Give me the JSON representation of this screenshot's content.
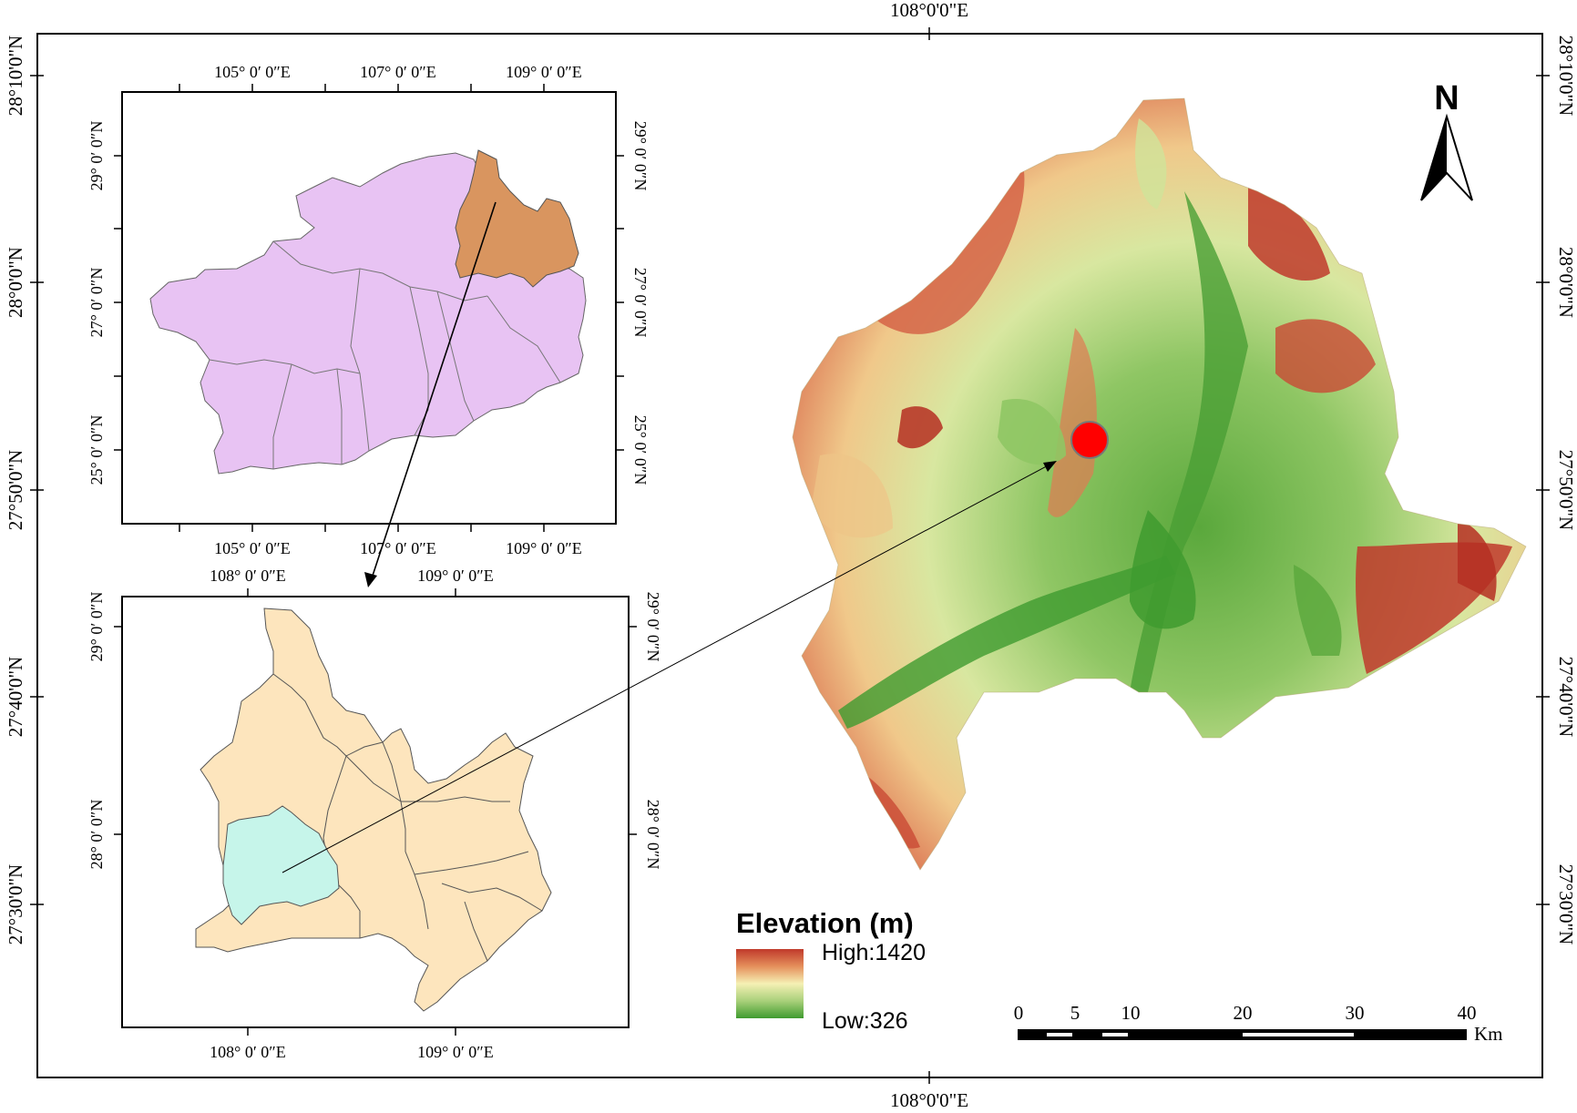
{
  "main_map": {
    "top_longitude_label": "108°0'0\"E",
    "bottom_longitude_label": "108°0'0\"E",
    "latitude_labels": [
      "28°10'0\"N",
      "28°0'0\"N",
      "27°50'0\"N",
      "27°40'0\"N",
      "27°30'0\"N"
    ]
  },
  "north_arrow": {
    "label": "N"
  },
  "legend": {
    "title": "Elevation (m)",
    "high_label": "High:1420",
    "low_label": "Low:326",
    "colors": {
      "high": "#c0392b",
      "mid": "#f5f0b4",
      "low": "#3f9b2f"
    }
  },
  "scale_bar": {
    "ticks": [
      "0",
      "5",
      "10",
      "20",
      "30",
      "40"
    ],
    "unit": "Km"
  },
  "inset_top": {
    "longitude_labels": [
      "105°  0′ 0″E",
      "107°  0′ 0″E",
      "109°  0′ 0″E"
    ],
    "latitude_labels": [
      "29°  0′ 0″N",
      "27°  0′ 0″N",
      "25°  0′ 0″N"
    ],
    "colors": {
      "province": "#e8c3f3",
      "highlight": "#d9955f"
    }
  },
  "inset_bottom": {
    "longitude_labels": [
      "108°  0′ 0″E",
      "109°  0′ 0″E"
    ],
    "latitude_labels": [
      "29°  0′ 0″N",
      "28°  0′ 0″N"
    ],
    "colors": {
      "prefecture": "#fde5bd",
      "highlight": "#c6f5ea"
    }
  },
  "study_site": {
    "marker_color": "#ff0000"
  }
}
